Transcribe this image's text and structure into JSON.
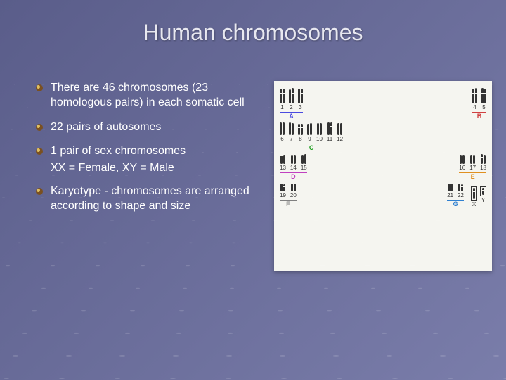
{
  "title": "Human chromosomes",
  "bullets": [
    {
      "text": "There are 46 chromosomes (23 homologous pairs) in each somatic cell"
    },
    {
      "text": "22 pairs of autosomes"
    },
    {
      "text": "1 pair of sex chromosomes",
      "sub": "XX = Female,   XY = Male"
    },
    {
      "text": "Karyotype - chromosomes are arranged according to shape and size"
    }
  ],
  "karyotype": {
    "groups": [
      {
        "label": "A",
        "color": "#4a4ae0",
        "pairs": [
          "1",
          "2",
          "3"
        ],
        "height": 22
      },
      {
        "label": "B",
        "color": "#d04040",
        "pairs": [
          "4",
          "5"
        ],
        "height": 22
      },
      {
        "label": "C",
        "color": "#20a020",
        "pairs": [
          "6",
          "7",
          "8",
          "9",
          "10",
          "11",
          "12"
        ],
        "height": 18
      },
      {
        "label": "D",
        "color": "#c040c0",
        "pairs": [
          "13",
          "14",
          "15"
        ],
        "height": 14
      },
      {
        "label": "E",
        "color": "#e09020",
        "pairs": [
          "16",
          "17",
          "18"
        ],
        "height": 14
      },
      {
        "label": "F",
        "color": "#808080",
        "pairs": [
          "19",
          "20"
        ],
        "height": 12
      },
      {
        "label": "G",
        "color": "#3080d0",
        "pairs": [
          "21",
          "22"
        ],
        "height": 12
      }
    ],
    "sex": {
      "x_label": "X",
      "y_label": "Y"
    },
    "background": "#f5f5f0",
    "chromatid_color": "#333333"
  },
  "colors": {
    "bg_gradient_start": "#5a5d8a",
    "bg_gradient_end": "#7a7daa",
    "text": "#ffffff",
    "title": "#e8e8f0",
    "bullet_dark": "#7a5020",
    "bullet_light": "#e0c060"
  }
}
